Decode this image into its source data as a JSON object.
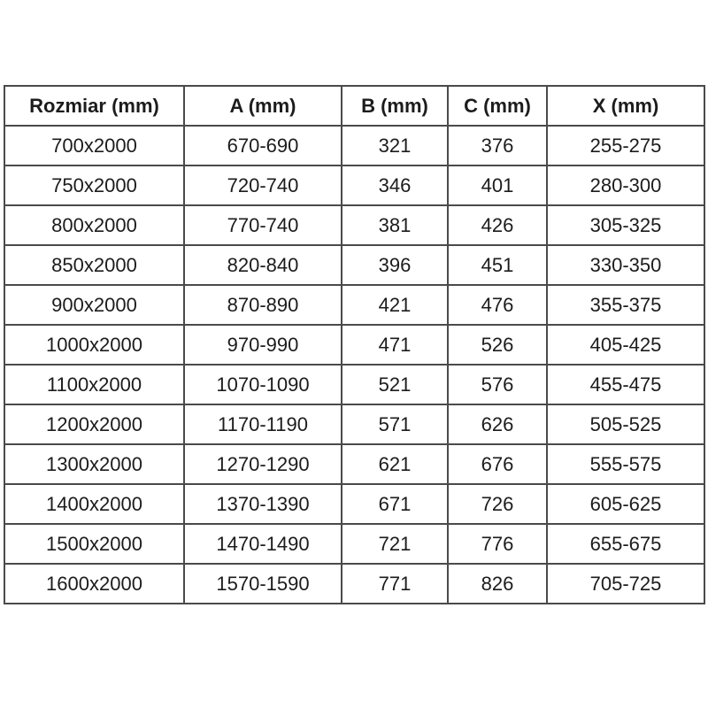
{
  "table": {
    "columns": [
      "Rozmiar (mm)",
      "A (mm)",
      "B (mm)",
      "C (mm)",
      "X (mm)"
    ],
    "rows": [
      [
        "700x2000",
        "670-690",
        "321",
        "376",
        "255-275"
      ],
      [
        "750x2000",
        "720-740",
        "346",
        "401",
        "280-300"
      ],
      [
        "800x2000",
        "770-740",
        "381",
        "426",
        "305-325"
      ],
      [
        "850x2000",
        "820-840",
        "396",
        "451",
        "330-350"
      ],
      [
        "900x2000",
        "870-890",
        "421",
        "476",
        "355-375"
      ],
      [
        "1000x2000",
        "970-990",
        "471",
        "526",
        "405-425"
      ],
      [
        "1100x2000",
        "1070-1090",
        "521",
        "576",
        "455-475"
      ],
      [
        "1200x2000",
        "1170-1190",
        "571",
        "626",
        "505-525"
      ],
      [
        "1300x2000",
        "1270-1290",
        "621",
        "676",
        "555-575"
      ],
      [
        "1400x2000",
        "1370-1390",
        "671",
        "726",
        "605-625"
      ],
      [
        "1500x2000",
        "1470-1490",
        "721",
        "776",
        "655-675"
      ],
      [
        "1600x2000",
        "1570-1590",
        "771",
        "826",
        "705-725"
      ]
    ]
  },
  "colors": {
    "border": "#4a4a4a",
    "text": "#1c1c1c",
    "background": "#ffffff"
  }
}
